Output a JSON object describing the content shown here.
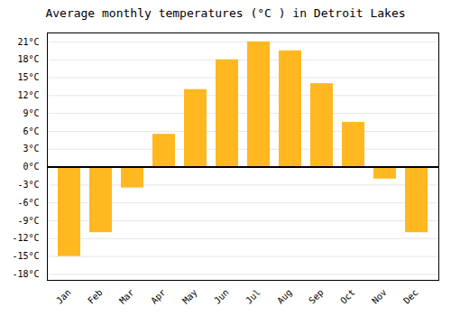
{
  "chart_data": {
    "type": "bar",
    "title": "Average monthly temperatures (°C ) in Detroit Lakes",
    "categories": [
      "Jan",
      "Feb",
      "Mar",
      "Apr",
      "May",
      "Jun",
      "Jul",
      "Aug",
      "Sep",
      "Oct",
      "Nov",
      "Dec"
    ],
    "values": [
      -15,
      -11,
      -3.5,
      5.5,
      13,
      18,
      21,
      19.5,
      14,
      7.5,
      -2,
      -11
    ],
    "color": "#FFB820",
    "ylim": [
      -19,
      22.5
    ],
    "yticks": [
      {
        "value": -18,
        "label": "-18°C"
      },
      {
        "value": -15,
        "label": "-15°C"
      },
      {
        "value": -12,
        "label": "-12°C"
      },
      {
        "value": -9,
        "label": "-9°C"
      },
      {
        "value": -6,
        "label": "-6°C"
      },
      {
        "value": -3,
        "label": "-3°C"
      },
      {
        "value": 0,
        "label": "0°C"
      },
      {
        "value": 3,
        "label": "3°C"
      },
      {
        "value": 6,
        "label": "6°C"
      },
      {
        "value": 9,
        "label": "9°C"
      },
      {
        "value": 12,
        "label": "12°C"
      },
      {
        "value": 15,
        "label": "15°C"
      },
      {
        "value": 18,
        "label": "18°C"
      },
      {
        "value": 21,
        "label": "21°C"
      }
    ],
    "grid": true
  }
}
